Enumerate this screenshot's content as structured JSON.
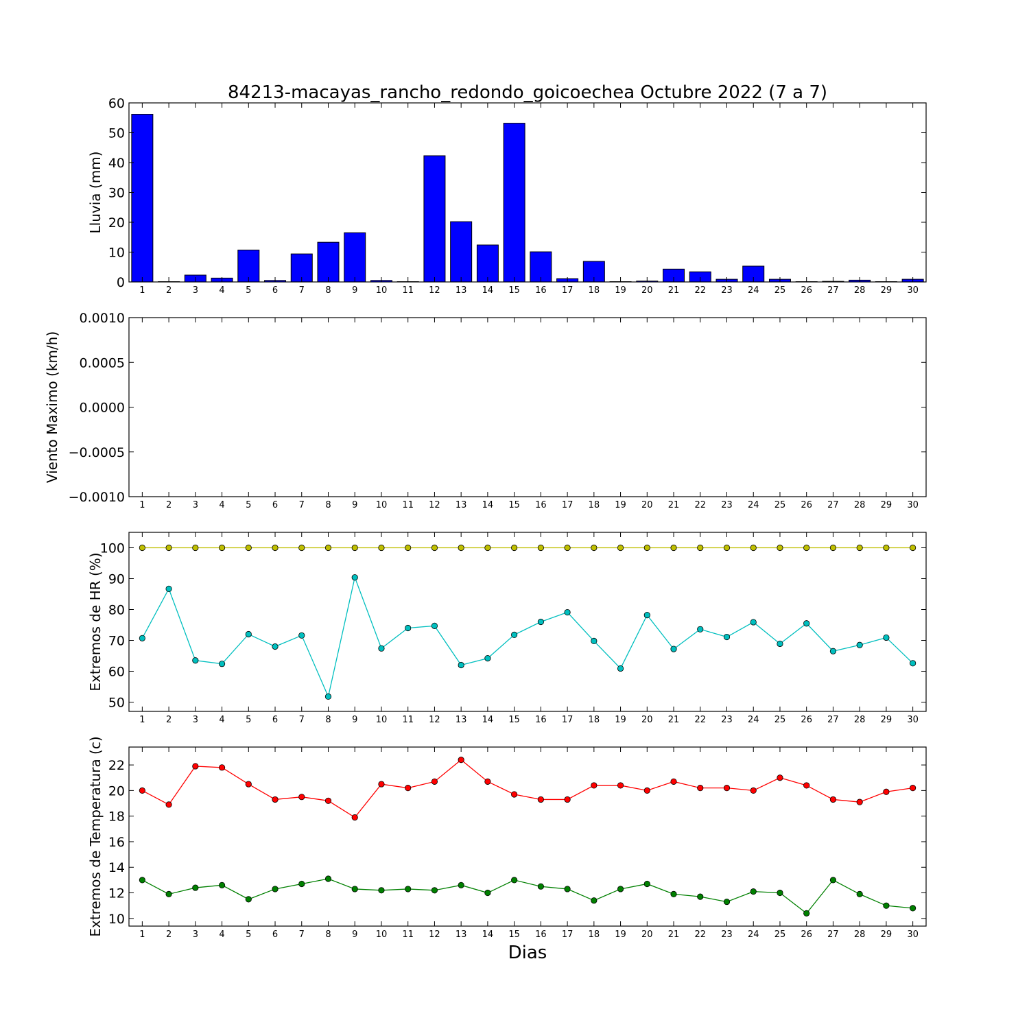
{
  "figure": {
    "title": "84213-macayas_rancho_redondo_goicoechea Octubre 2022  (7 a 7)",
    "xlabel": "Dias"
  },
  "chart_data": [
    {
      "type": "bar",
      "ylabel": "Lluvia (mm)",
      "ylim": [
        0,
        60
      ],
      "yticks": [
        0,
        10,
        20,
        30,
        40,
        50,
        60
      ],
      "categories": [
        1,
        2,
        3,
        4,
        5,
        6,
        7,
        8,
        9,
        10,
        11,
        12,
        13,
        14,
        15,
        16,
        17,
        18,
        19,
        20,
        21,
        22,
        23,
        24,
        25,
        26,
        27,
        28,
        29,
        30
      ],
      "values": [
        56.2,
        0.1,
        2.3,
        1.3,
        10.7,
        0.5,
        9.4,
        13.3,
        16.5,
        0.5,
        0.1,
        42.3,
        20.2,
        12.4,
        53.2,
        10.1,
        1.1,
        6.9,
        0.1,
        0.3,
        4.3,
        3.4,
        0.9,
        5.3,
        0.9,
        0.1,
        0.2,
        0.6,
        0.1,
        0.9
      ],
      "color": "#0000ff"
    },
    {
      "type": "line",
      "ylabel": "Viento Maximo (km/h)",
      "ylim": [
        -0.001,
        0.001
      ],
      "yticks": [
        -0.001,
        -0.0005,
        0.0,
        0.0005,
        0.001
      ],
      "ytick_labels": [
        "−0.0010",
        "−0.0005",
        "0.0000",
        "0.0005",
        "0.0010"
      ],
      "categories": [
        1,
        2,
        3,
        4,
        5,
        6,
        7,
        8,
        9,
        10,
        11,
        12,
        13,
        14,
        15,
        16,
        17,
        18,
        19,
        20,
        21,
        22,
        23,
        24,
        25,
        26,
        27,
        28,
        29,
        30
      ],
      "series": []
    },
    {
      "type": "line",
      "ylabel": "Extremos de HR (%)",
      "ylim": [
        47,
        105
      ],
      "yticks": [
        50,
        60,
        70,
        80,
        90,
        100
      ],
      "categories": [
        1,
        2,
        3,
        4,
        5,
        6,
        7,
        8,
        9,
        10,
        11,
        12,
        13,
        14,
        15,
        16,
        17,
        18,
        19,
        20,
        21,
        22,
        23,
        24,
        25,
        26,
        27,
        28,
        29,
        30
      ],
      "series": [
        {
          "color": "#bfbf00",
          "values": [
            100,
            100,
            100,
            100,
            100,
            100,
            100,
            100,
            100,
            100,
            100,
            100,
            100,
            100,
            100,
            100,
            100,
            100,
            100,
            100,
            100,
            100,
            100,
            100,
            100,
            100,
            100,
            100,
            100,
            100
          ]
        },
        {
          "color": "#00bfbf",
          "values": [
            70.7,
            86.7,
            63.5,
            62.4,
            72.0,
            68.0,
            71.6,
            51.8,
            90.4,
            67.4,
            74.0,
            74.7,
            62.0,
            64.2,
            71.8,
            76.0,
            79.1,
            69.8,
            60.9,
            78.2,
            67.2,
            73.6,
            71.1,
            75.9,
            68.9,
            75.5,
            66.5,
            68.5,
            70.9,
            62.6
          ]
        }
      ]
    },
    {
      "type": "line",
      "ylabel": "Extremos de Temperatura (c)",
      "ylim": [
        9.4,
        23.4
      ],
      "yticks": [
        10,
        12,
        14,
        16,
        18,
        20,
        22
      ],
      "categories": [
        1,
        2,
        3,
        4,
        5,
        6,
        7,
        8,
        9,
        10,
        11,
        12,
        13,
        14,
        15,
        16,
        17,
        18,
        19,
        20,
        21,
        22,
        23,
        24,
        25,
        26,
        27,
        28,
        29,
        30
      ],
      "series": [
        {
          "color": "#ff0000",
          "values": [
            20.0,
            18.9,
            21.9,
            21.8,
            20.5,
            19.3,
            19.5,
            19.2,
            17.9,
            20.5,
            20.2,
            20.7,
            22.4,
            20.7,
            19.7,
            19.3,
            19.3,
            20.4,
            20.4,
            20.0,
            20.7,
            20.2,
            20.2,
            20.0,
            21.0,
            20.4,
            19.3,
            19.1,
            19.9,
            20.2
          ]
        },
        {
          "color": "#008000",
          "values": [
            13.0,
            11.9,
            12.4,
            12.6,
            11.5,
            12.3,
            12.7,
            13.1,
            12.3,
            12.2,
            12.3,
            12.2,
            12.6,
            12.0,
            13.0,
            12.5,
            12.3,
            11.4,
            12.3,
            12.7,
            11.9,
            11.7,
            11.3,
            12.1,
            12.0,
            10.4,
            13.0,
            11.9,
            11.0,
            10.8
          ]
        }
      ]
    }
  ]
}
